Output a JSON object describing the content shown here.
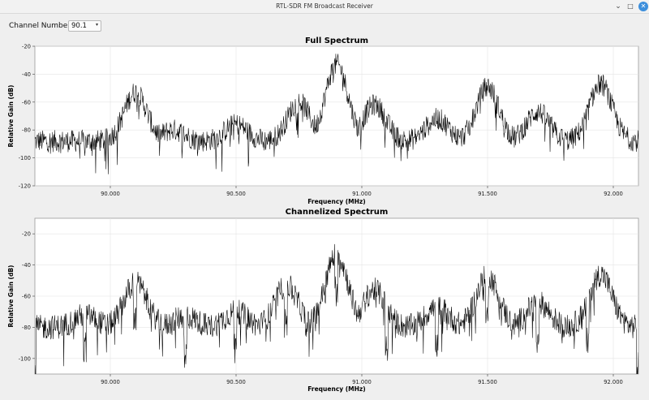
{
  "window": {
    "title": "RTL-SDR FM Broadcast Receiver",
    "min_icon": "minimize-icon",
    "max_icon": "maximize-icon",
    "close_icon": "close-icon"
  },
  "controls": {
    "channel_label": "Channel Number: :",
    "channel_value": "90.1"
  },
  "colors": {
    "trace": "#000000",
    "grid": "#e4e4e4",
    "plot_bg": "#ffffff",
    "accent": "#3d8fdc"
  },
  "chart_data": [
    {
      "type": "line",
      "title": "Full Spectrum",
      "xlabel": "Frequency (MHz)",
      "ylabel": "Relative Gain (dB)",
      "xlim": [
        89.7,
        92.1
      ],
      "ylim": [
        -120,
        -20
      ],
      "x_ticks": [
        "90.000",
        "90.500",
        "91.000",
        "91.500",
        "92.000"
      ],
      "y_ticks": [
        "-20",
        "-40",
        "-60",
        "-80",
        "-100",
        "-120"
      ],
      "grid": true,
      "noise_floor_db": -88,
      "series": [
        {
          "x": [
            90.1,
            90.25,
            90.5,
            90.75,
            90.9,
            91.05,
            91.3,
            91.5,
            91.7,
            91.95
          ],
          "y": [
            -53,
            -80,
            -76,
            -60,
            -33,
            -62,
            -72,
            -49,
            -67,
            -47
          ]
        }
      ]
    },
    {
      "type": "line",
      "title": "Channelized Spectrum",
      "xlabel": "Frequency (MHz)",
      "ylabel": "Relative Gain (dB)",
      "xlim": [
        89.7,
        92.1
      ],
      "ylim": [
        -110,
        -10
      ],
      "x_ticks": [
        "90.000",
        "90.500",
        "91.000",
        "91.500",
        "92.000"
      ],
      "y_ticks": [
        "-20",
        "-40",
        "-60",
        "-80",
        "-100"
      ],
      "grid": true,
      "noise_floor_db": -80,
      "series": [
        {
          "x": [
            89.9,
            90.1,
            90.3,
            90.5,
            90.7,
            90.9,
            91.05,
            91.3,
            91.5,
            91.7,
            91.95
          ],
          "y": [
            -72,
            -51,
            -73,
            -70,
            -53,
            -33,
            -56,
            -67,
            -47,
            -64,
            -46
          ]
        }
      ]
    }
  ]
}
